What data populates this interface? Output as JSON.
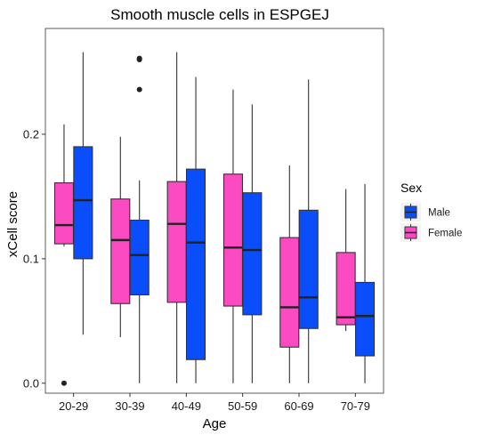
{
  "chart_data": {
    "type": "boxplot",
    "title": "Smooth muscle cells in ESPGEJ",
    "xlabel": "Age",
    "ylabel": "xCell score",
    "categories": [
      "20-29",
      "30-39",
      "40-49",
      "50-59",
      "60-69",
      "70-79"
    ],
    "yticks": [
      "0.0",
      "0.1",
      "0.2"
    ],
    "ylim": [
      -0.008,
      0.285
    ],
    "grid": false,
    "legend": {
      "title": "Sex",
      "position": "right",
      "entries": [
        {
          "label": "Male",
          "color": "#0a4dfb"
        },
        {
          "label": "Female",
          "color": "#fc4ac3"
        }
      ]
    },
    "series": [
      {
        "name": "Female",
        "color": "#fc4ac3",
        "boxes": [
          {
            "whisker_low": 0.11,
            "q1": 0.112,
            "median": 0.127,
            "q3": 0.161,
            "whisker_high": 0.208,
            "outliers": [
              0.0
            ]
          },
          {
            "whisker_low": 0.037,
            "q1": 0.064,
            "median": 0.115,
            "q3": 0.148,
            "whisker_high": 0.198,
            "outliers": []
          },
          {
            "whisker_low": 0.0,
            "q1": 0.065,
            "median": 0.128,
            "q3": 0.162,
            "whisker_high": 0.266,
            "outliers": []
          },
          {
            "whisker_low": 0.0,
            "q1": 0.062,
            "median": 0.109,
            "q3": 0.168,
            "whisker_high": 0.236,
            "outliers": []
          },
          {
            "whisker_low": 0.0,
            "q1": 0.029,
            "median": 0.061,
            "q3": 0.117,
            "whisker_high": 0.175,
            "outliers": []
          },
          {
            "whisker_low": 0.042,
            "q1": 0.047,
            "median": 0.053,
            "q3": 0.105,
            "whisker_high": 0.156,
            "outliers": []
          }
        ]
      },
      {
        "name": "Male",
        "color": "#0a4dfb",
        "boxes": [
          {
            "whisker_low": 0.039,
            "q1": 0.1,
            "median": 0.147,
            "q3": 0.19,
            "whisker_high": 0.266,
            "outliers": []
          },
          {
            "whisker_low": 0.0,
            "q1": 0.071,
            "median": 0.103,
            "q3": 0.131,
            "whisker_high": 0.163,
            "outliers": [
              0.236,
              0.26,
              0.261
            ]
          },
          {
            "whisker_low": 0.0,
            "q1": 0.019,
            "median": 0.113,
            "q3": 0.172,
            "whisker_high": 0.246,
            "outliers": []
          },
          {
            "whisker_low": 0.0,
            "q1": 0.055,
            "median": 0.107,
            "q3": 0.153,
            "whisker_high": 0.224,
            "outliers": []
          },
          {
            "whisker_low": 0.0,
            "q1": 0.044,
            "median": 0.069,
            "q3": 0.139,
            "whisker_high": 0.244,
            "outliers": []
          },
          {
            "whisker_low": 0.0,
            "q1": 0.022,
            "median": 0.054,
            "q3": 0.081,
            "whisker_high": 0.16,
            "outliers": []
          }
        ]
      }
    ]
  }
}
